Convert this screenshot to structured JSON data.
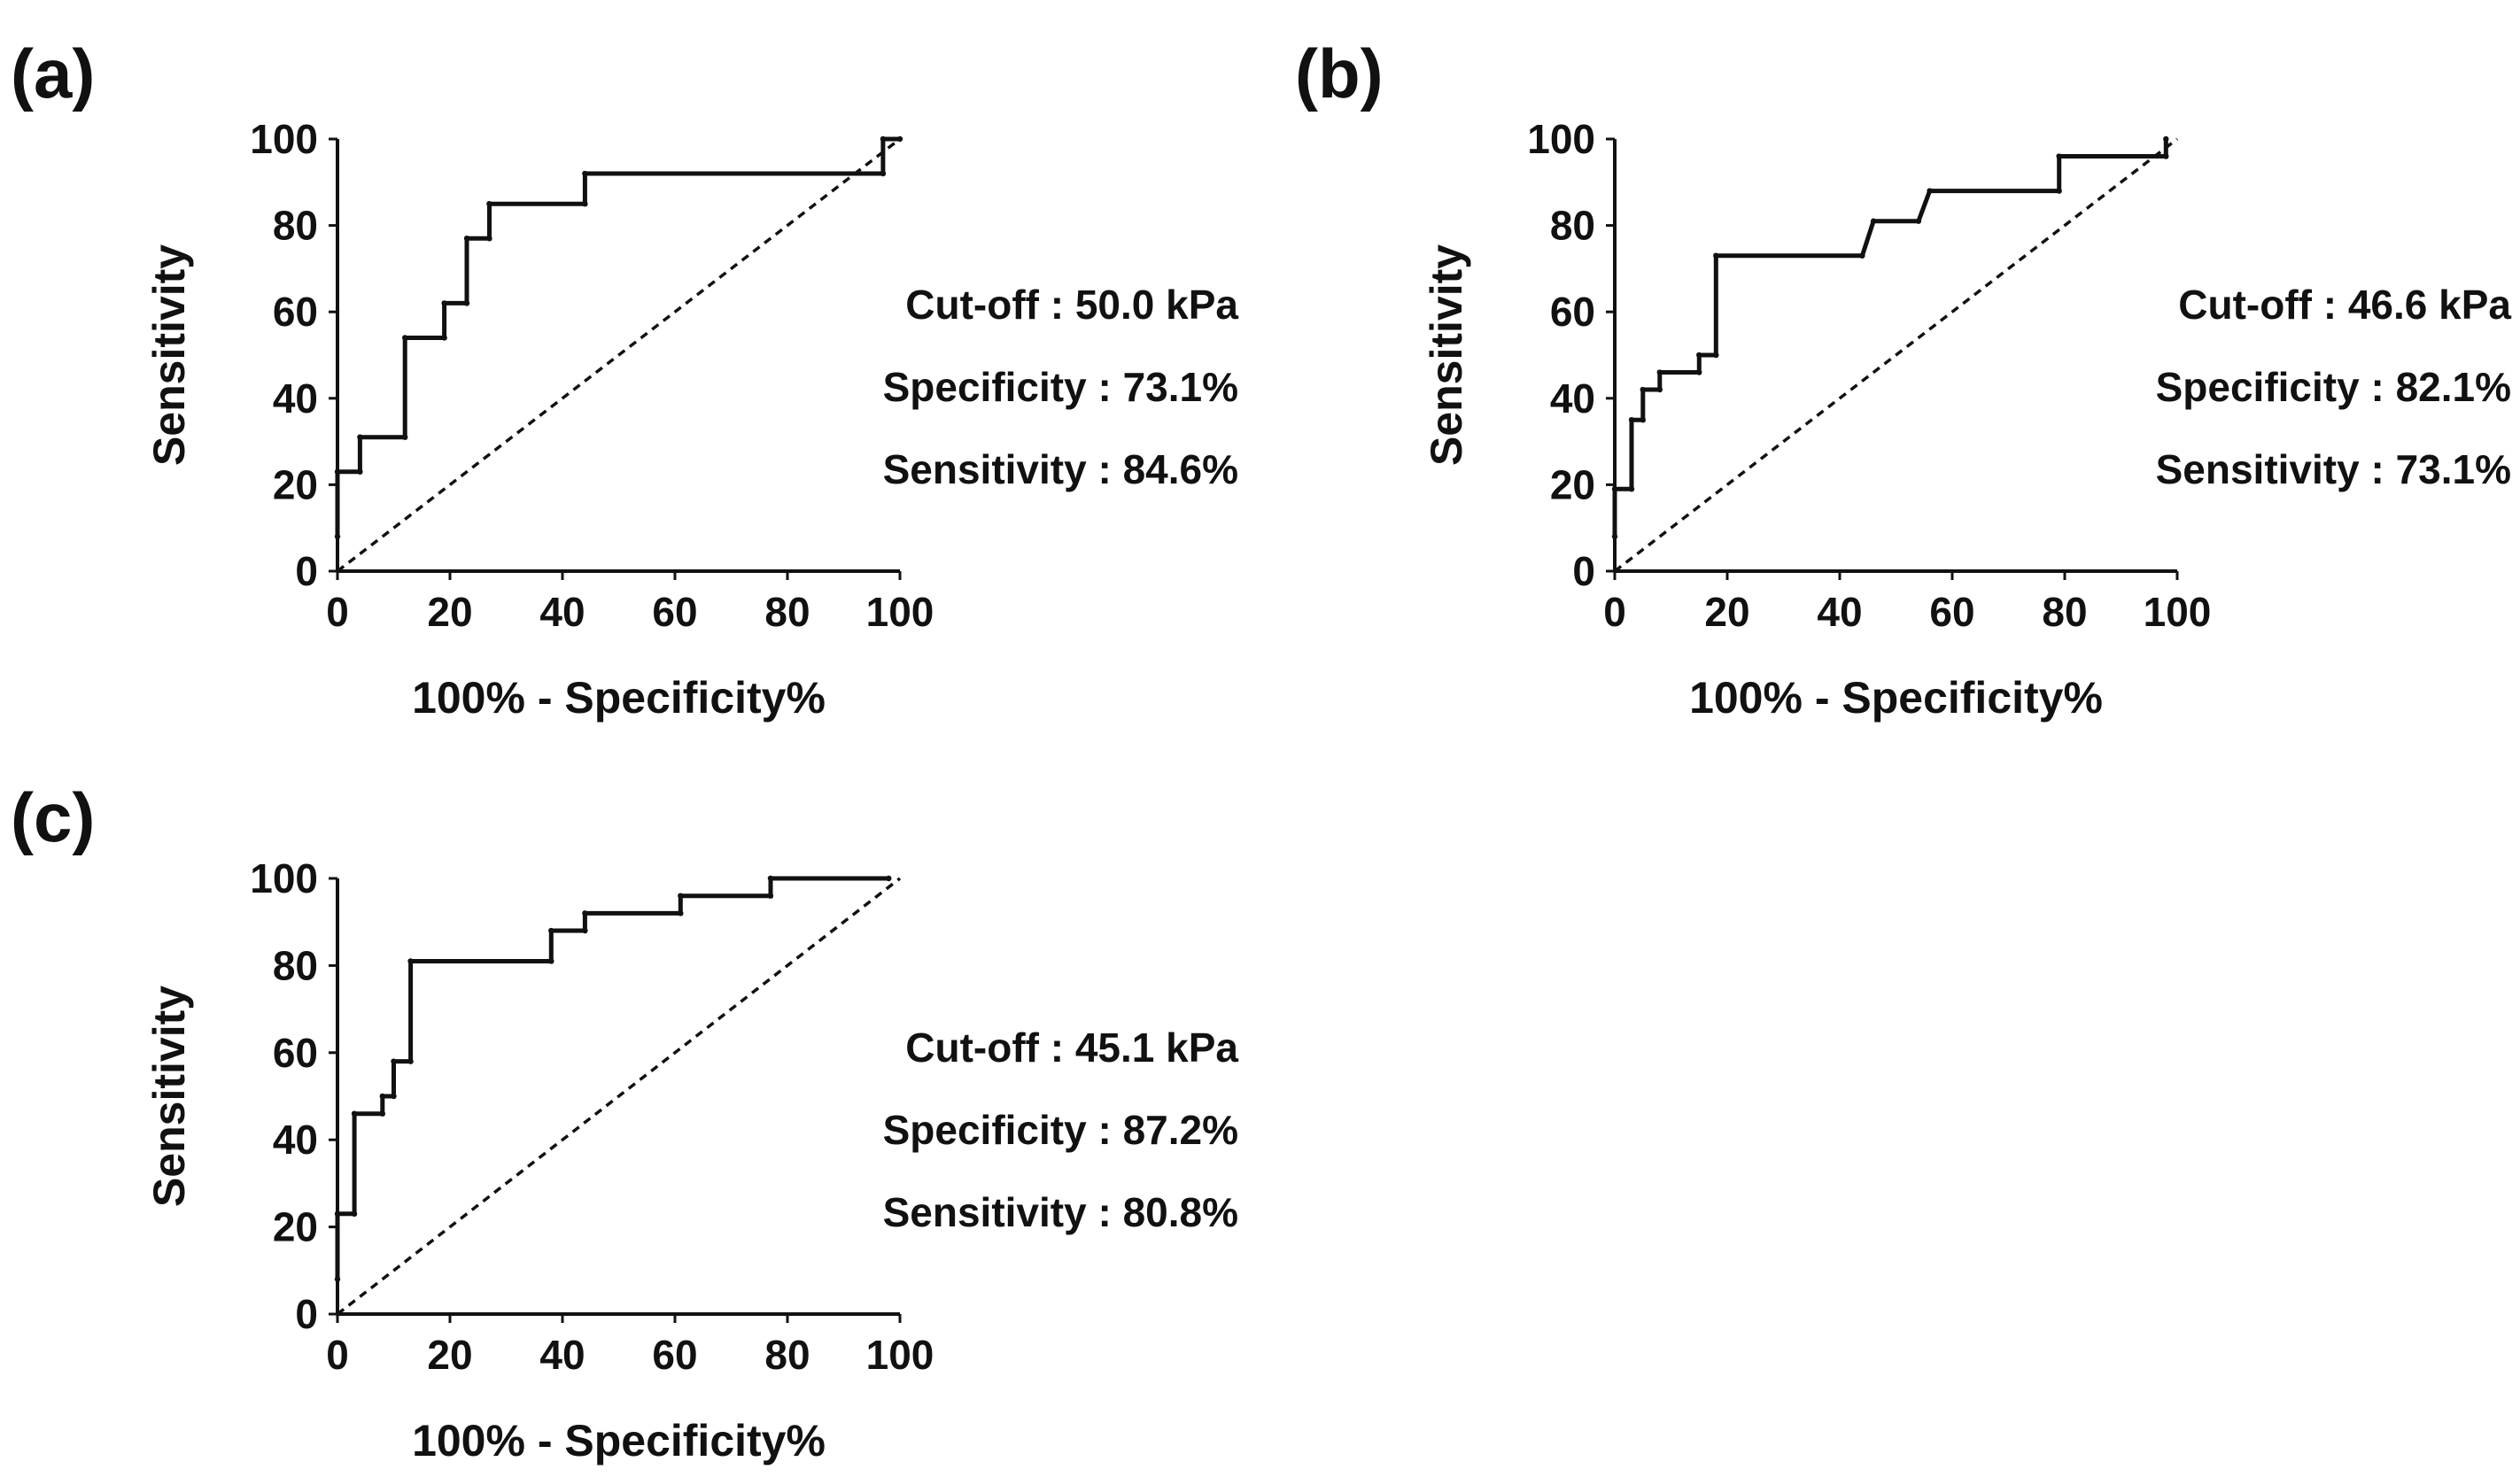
{
  "chart_data": [
    {
      "type": "line",
      "panel_label": "(a)",
      "xlabel": "100% - Specificity%",
      "ylabel": "Sensitivity",
      "xlim": [
        0,
        100
      ],
      "ylim": [
        0,
        100
      ],
      "xticks": [
        "0",
        "20",
        "40",
        "60",
        "80",
        "100"
      ],
      "yticks": [
        "0",
        "20",
        "40",
        "60",
        "80",
        "100"
      ],
      "reference_line": {
        "name": "chance",
        "x": [
          0,
          100
        ],
        "y": [
          0,
          100
        ]
      },
      "roc_curve": {
        "x": [
          0,
          0,
          4,
          4,
          12,
          12,
          19,
          19,
          23,
          23,
          27,
          27,
          44,
          44,
          97,
          97,
          100
        ],
        "y": [
          8,
          23,
          23,
          31,
          31,
          54,
          54,
          62,
          62,
          77,
          77,
          85,
          85,
          92,
          92,
          100,
          100
        ]
      },
      "annotations": [
        "Cut-off : 50.0 kPa",
        "Specificity : 73.1%",
        "Sensitivity : 84.6%"
      ]
    },
    {
      "type": "line",
      "panel_label": "(b)",
      "xlabel": "100% - Specificity%",
      "ylabel": "Sensitivity",
      "xlim": [
        0,
        100
      ],
      "ylim": [
        0,
        100
      ],
      "xticks": [
        "0",
        "20",
        "40",
        "60",
        "80",
        "100"
      ],
      "yticks": [
        "0",
        "20",
        "40",
        "60",
        "80",
        "100"
      ],
      "reference_line": {
        "name": "chance",
        "x": [
          0,
          100
        ],
        "y": [
          0,
          100
        ]
      },
      "roc_curve": {
        "x": [
          0,
          0,
          3,
          3,
          5,
          5,
          8,
          8,
          15,
          15,
          18,
          18,
          44,
          46,
          54,
          56,
          79,
          79,
          98,
          98
        ],
        "y": [
          8,
          19,
          19,
          35,
          35,
          42,
          42,
          46,
          46,
          50,
          50,
          73,
          73,
          81,
          81,
          88,
          88,
          96,
          96,
          100
        ]
      },
      "annotations": [
        "Cut-off : 46.6 kPa",
        "Specificity : 82.1%",
        "Sensitivity : 73.1%"
      ]
    },
    {
      "type": "line",
      "panel_label": "(c)",
      "xlabel": "100% - Specificity%",
      "ylabel": "Sensitivity",
      "xlim": [
        0,
        100
      ],
      "ylim": [
        0,
        100
      ],
      "xticks": [
        "0",
        "20",
        "40",
        "60",
        "80",
        "100"
      ],
      "yticks": [
        "0",
        "20",
        "40",
        "60",
        "80",
        "100"
      ],
      "reference_line": {
        "name": "chance",
        "x": [
          0,
          100
        ],
        "y": [
          0,
          100
        ]
      },
      "roc_curve": {
        "x": [
          0,
          0,
          3,
          3,
          8,
          8,
          10,
          10,
          13,
          13,
          38,
          38,
          44,
          44,
          61,
          61,
          77,
          77,
          98
        ],
        "y": [
          8,
          23,
          23,
          46,
          46,
          50,
          50,
          58,
          58,
          81,
          81,
          88,
          88,
          92,
          92,
          96,
          96,
          100,
          100
        ]
      },
      "annotations": [
        "Cut-off : 45.1 kPa",
        "Specificity : 87.2%",
        "Sensitivity : 80.8%"
      ]
    }
  ]
}
